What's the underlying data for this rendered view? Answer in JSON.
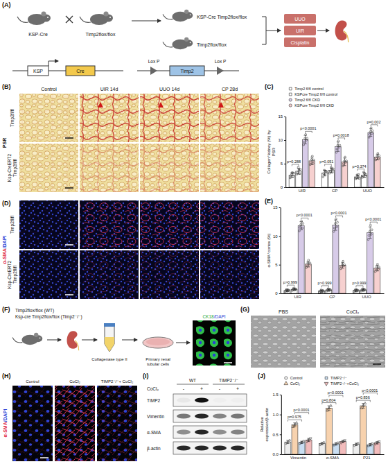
{
  "figure": {
    "panel_a": {
      "letter": "(A)",
      "parent_1": "KSP-Cre",
      "parent_2": "Timp2flox/flox",
      "offspring_1": "KSP-Cre Timp2flox/flox",
      "offspring_2": "Timp2flox/flox",
      "models": [
        "UUO",
        "UIR",
        "Cisplatin"
      ],
      "promoter": "KSP",
      "gene": "Cre",
      "loxp_1": "Lox P",
      "target": "Timp2",
      "loxp_2": "Lox P"
    },
    "panel_b": {
      "letter": "(B)",
      "stain": "PSR",
      "columns": [
        "Control",
        "UIR 14d",
        "UUO 14d",
        "CP 28d"
      ],
      "rows": [
        "Timp2fl/fl",
        "Ksp-CreERT2 Timp2fl/fl"
      ]
    },
    "panel_c": {
      "letter": "(C)"
    },
    "panel_d": {
      "letter": "(D)",
      "stain": "α-SMA/DAPI",
      "rows": [
        "Timp2fl/fl",
        "Ksp-CreERT2 Timp2fl/fl"
      ]
    },
    "panel_e": {
      "letter": "(E)"
    },
    "panel_f": {
      "letter": "(F)",
      "genotype_1": "Timp2flox/flox (WT)",
      "genotype_2": "Ksp-cre Timp2flox/flox (Timp2⁻/⁻)",
      "digestion": "Collagenase type II",
      "culture": "Primary renal tubular cells",
      "stain": "CK18/DAPI"
    },
    "panel_g": {
      "letter": "(G)",
      "columns": [
        "PBS",
        "CoCl₂"
      ]
    },
    "panel_h": {
      "letter": "(H)",
      "stain": "α-SMA/DAPI",
      "columns": [
        "Control",
        "CoCl₂",
        "TIMP2⁻/⁻+ CoCl₂"
      ]
    },
    "panel_i": {
      "letter": "(I)",
      "groups": [
        "WT",
        "TIMP2⁻/⁻"
      ],
      "treatment": "CoCl₂",
      "lanes": [
        "-",
        "+",
        "-",
        "+"
      ],
      "rows": [
        "TIMP2",
        "Vimentin",
        "α-SMA",
        "β-actin"
      ],
      "band_intensity": [
        [
          0.05,
          1,
          0.02,
          0.02
        ],
        [
          0.55,
          0.9,
          0.5,
          0.55
        ],
        [
          0.45,
          0.9,
          0.45,
          0.5
        ],
        [
          0.9,
          0.9,
          0.9,
          0.9
        ]
      ]
    },
    "panel_j": {
      "letter": "(J)"
    }
  },
  "chart_data": [
    {
      "type": "bar",
      "y_label": "Collagen⁺kidney (%) by PSR",
      "legend": "top",
      "categories": [
        "UIR",
        "CP",
        "UUO"
      ],
      "ylim": [
        0,
        15
      ],
      "yticks": [
        0,
        5,
        10,
        15
      ],
      "series": [
        {
          "name": "Timp2 fl/fl control",
          "color": "#ffffff",
          "marker": "square",
          "values": [
            2.6,
            3.0,
            2.2
          ],
          "errors": [
            0.5,
            0.6,
            0.4
          ],
          "points": [
            [
              2.0,
              2.4,
              2.7,
              3.1,
              2.3,
              3.0
            ],
            [
              2.2,
              2.9,
              3.6,
              2.6,
              3.4,
              3.3
            ],
            [
              1.8,
              2.0,
              2.6,
              2.3,
              2.7,
              1.9
            ]
          ]
        },
        {
          "name": "KSPcre Timp2 fl/fl control",
          "color": "#ffffff",
          "marker": "square",
          "values": [
            3.4,
            3.6,
            2.6
          ],
          "errors": [
            0.6,
            0.5,
            0.5
          ],
          "points": [
            [
              2.8,
              3.1,
              4.2,
              3.6,
              2.9,
              3.8
            ],
            [
              3.0,
              3.4,
              4.2,
              3.9,
              3.2,
              3.9
            ],
            [
              2.1,
              2.4,
              3.2,
              2.9,
              2.3,
              2.7
            ]
          ]
        },
        {
          "name": "Timp2 fl/fl CKD",
          "color": "#d7cbe8",
          "marker": "circle",
          "values": [
            10.1,
            8.6,
            11.6
          ],
          "errors": [
            0.9,
            1.0,
            0.8
          ],
          "points": [
            [
              9.0,
              9.6,
              10.4,
              11.2,
              10.0,
              10.4
            ],
            [
              7.4,
              8.1,
              8.9,
              9.8,
              8.5,
              8.9
            ],
            [
              10.6,
              11.2,
              11.8,
              12.6,
              11.4,
              12.0
            ]
          ]
        },
        {
          "name": "KSPcre Timp2 fl/fl CKD",
          "color": "#f6d0cf",
          "marker": "circle",
          "values": [
            5.6,
            5.4,
            6.4
          ],
          "errors": [
            0.8,
            0.8,
            0.6
          ],
          "points": [
            [
              4.8,
              5.2,
              5.9,
              6.6,
              5.1,
              5.8
            ],
            [
              4.5,
              5.0,
              5.6,
              6.4,
              5.3,
              5.6
            ],
            [
              5.8,
              6.1,
              6.6,
              7.2,
              6.0,
              6.7
            ]
          ]
        }
      ],
      "annotations": [
        [
          "p=0.288",
          "p<0.0001"
        ],
        [
          "p=0.051",
          "p=0.0018"
        ],
        [
          "p=0.374",
          "p=0.002"
        ]
      ]
    },
    {
      "type": "bar",
      "y_label": "α-SMA⁺cortex (%)",
      "categories": [
        "UIR",
        "CP",
        "UUO"
      ],
      "ylim": [
        0,
        15
      ],
      "yticks": [
        0,
        5,
        10,
        15
      ],
      "series": [
        {
          "color": "#ffffff",
          "marker": "square",
          "values": [
            0.5,
            0.4,
            0.5
          ],
          "errors": [
            0.2,
            0.2,
            0.2
          ],
          "points": [
            [
              0.3,
              0.5,
              0.7,
              0.4,
              0.6,
              0.5
            ],
            [
              0.2,
              0.4,
              0.6,
              0.3,
              0.5,
              0.4
            ],
            [
              0.3,
              0.5,
              0.7,
              0.4,
              0.6,
              0.5
            ]
          ]
        },
        {
          "color": "#ffffff",
          "marker": "square",
          "values": [
            0.7,
            0.6,
            0.6
          ],
          "errors": [
            0.2,
            0.2,
            0.2
          ],
          "points": [
            [
              0.5,
              0.7,
              0.9,
              0.6,
              0.8,
              0.7
            ],
            [
              0.4,
              0.6,
              0.8,
              0.5,
              0.7,
              0.6
            ],
            [
              0.4,
              0.6,
              0.8,
              0.5,
              0.7,
              0.6
            ]
          ]
        },
        {
          "color": "#d7cbe8",
          "marker": "circle",
          "values": [
            11.8,
            11.9,
            10.6
          ],
          "errors": [
            0.7,
            0.9,
            1.0
          ],
          "points": [
            [
              10.9,
              11.5,
              12.0,
              12.6,
              11.4,
              12.2
            ],
            [
              10.8,
              11.4,
              12.2,
              13.0,
              11.6,
              12.4
            ],
            [
              9.4,
              10.1,
              10.8,
              11.9,
              10.3,
              11.1
            ]
          ]
        },
        {
          "color": "#f6d0cf",
          "marker": "circle",
          "values": [
            5.1,
            4.9,
            4.4
          ],
          "errors": [
            0.5,
            0.5,
            0.5
          ],
          "points": [
            [
              4.5,
              4.8,
              5.3,
              5.8,
              4.9,
              5.3
            ],
            [
              4.3,
              4.6,
              5.1,
              5.6,
              4.8,
              5.0
            ],
            [
              3.8,
              4.1,
              4.6,
              5.1,
              4.2,
              4.6
            ]
          ]
        }
      ],
      "annotations": [
        [
          "p>0.999",
          "p<0.0001"
        ],
        [
          "p>0.999",
          "p<0.0001"
        ],
        [
          "p>0.999",
          "p<0.0001"
        ]
      ]
    },
    {
      "type": "bar",
      "y_label": "Relative expression/β-actin",
      "legend": "top",
      "categories": [
        "Vimentin",
        "α-SMA",
        "P21"
      ],
      "ylim": [
        0,
        1.5
      ],
      "yticks": [
        {
          "value": 0,
          "label": "0.0"
        },
        0.5,
        {
          "value": 1,
          "label": "1.0"
        },
        1.5
      ],
      "series": [
        {
          "name": "Control",
          "color": "#eeeeee",
          "marker": "circle",
          "values": [
            0.31,
            0.27,
            0.25
          ],
          "errors": [
            0.04,
            0.03,
            0.03
          ],
          "points": [
            [
              0.27,
              0.31,
              0.35
            ],
            [
              0.24,
              0.27,
              0.3
            ],
            [
              0.22,
              0.25,
              0.28
            ]
          ]
        },
        {
          "name": "CoCl₂",
          "color": "#f7d2ae",
          "marker": "triangle",
          "values": [
            0.74,
            1.16,
            1.22
          ],
          "errors": [
            0.05,
            0.06,
            0.06
          ],
          "points": [
            [
              0.69,
              0.74,
              0.79
            ],
            [
              1.1,
              1.16,
              1.22
            ],
            [
              1.16,
              1.22,
              1.28
            ]
          ]
        },
        {
          "name": "TIMP2⁻/⁻",
          "color": "#c9def2",
          "marker": "square",
          "values": [
            0.3,
            0.26,
            0.24
          ],
          "errors": [
            0.03,
            0.03,
            0.03
          ],
          "points": [
            [
              0.27,
              0.3,
              0.33
            ],
            [
              0.23,
              0.26,
              0.29
            ],
            [
              0.21,
              0.24,
              0.27
            ]
          ]
        },
        {
          "name": "TIMP2⁻/⁻+CoCl₂",
          "color": "#f2bcbc",
          "marker": "triangle-down",
          "values": [
            0.36,
            0.32,
            0.29
          ],
          "errors": [
            0.04,
            0.03,
            0.03
          ],
          "points": [
            [
              0.32,
              0.36,
              0.4
            ],
            [
              0.29,
              0.32,
              0.35
            ],
            [
              0.26,
              0.29,
              0.32
            ]
          ]
        }
      ],
      "annotations": [
        [
          "p=0.975",
          "p<0.0001"
        ],
        [
          "p=0.804",
          "p<0.0001"
        ],
        [
          "p=0.856",
          "p<0.0001"
        ]
      ]
    }
  ]
}
